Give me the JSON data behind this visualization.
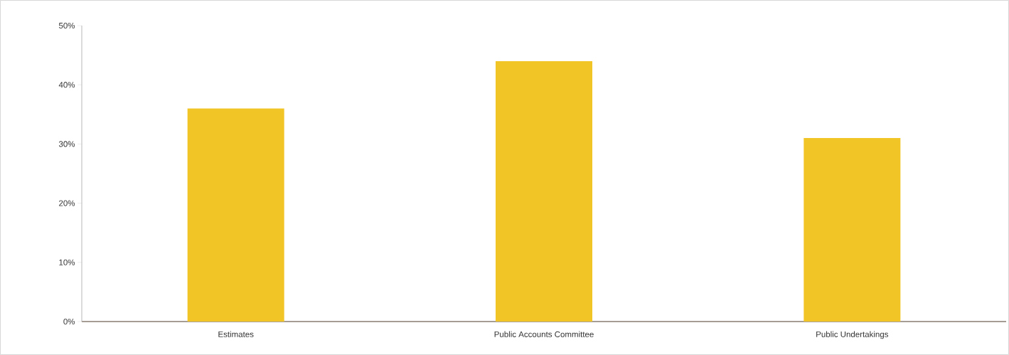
{
  "chart_data": {
    "type": "bar",
    "categories": [
      "Estimates",
      "Public Accounts Committee",
      "Public Undertakings"
    ],
    "values": [
      36,
      44,
      31
    ],
    "color": "#f2c526",
    "ylim": [
      0,
      50
    ],
    "yticks": [
      {
        "value": 0,
        "label": "0%"
      },
      {
        "value": 10,
        "label": "10%"
      },
      {
        "value": 20,
        "label": "20%"
      },
      {
        "value": 30,
        "label": "30%"
      },
      {
        "value": 40,
        "label": "40%"
      },
      {
        "value": 50,
        "label": "50%"
      }
    ]
  }
}
